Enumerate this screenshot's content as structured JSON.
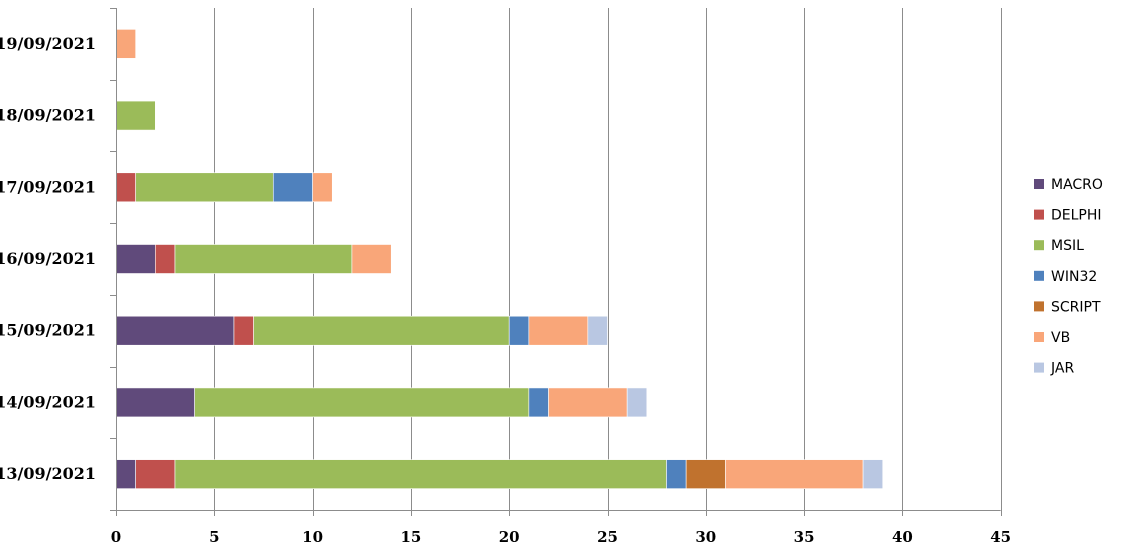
{
  "chart_data": {
    "type": "bar",
    "orientation": "horizontal",
    "stacked": true,
    "categories": [
      "13/09/2021",
      "14/09/2021",
      "15/09/2021",
      "16/09/2021",
      "17/09/2021",
      "18/09/2021",
      "19/09/2021"
    ],
    "series": [
      {
        "name": "MACRO",
        "color": "#604a7b",
        "values": [
          1,
          4,
          6,
          2,
          0,
          0,
          0
        ]
      },
      {
        "name": "DELPHI",
        "color": "#c0504d",
        "values": [
          2,
          0,
          1,
          1,
          1,
          0,
          0
        ]
      },
      {
        "name": "MSIL",
        "color": "#9bbb59",
        "values": [
          25,
          17,
          13,
          9,
          7,
          2,
          0
        ]
      },
      {
        "name": "WIN32",
        "color": "#4f81bd",
        "values": [
          1,
          1,
          1,
          0,
          2,
          0,
          0
        ]
      },
      {
        "name": "SCRIPT",
        "color": "#c0722e",
        "values": [
          2,
          0,
          0,
          0,
          0,
          0,
          0
        ]
      },
      {
        "name": "VB",
        "color": "#f9a679",
        "values": [
          7,
          4,
          3,
          2,
          1,
          0,
          1
        ]
      },
      {
        "name": "JAR",
        "color": "#b9c7e2",
        "values": [
          1,
          1,
          1,
          0,
          0,
          0,
          0
        ]
      }
    ],
    "x_ticks": [
      0,
      5,
      10,
      15,
      20,
      25,
      30,
      35,
      40,
      45
    ],
    "xlim": [
      0,
      45
    ],
    "grid": true,
    "legend_position": "right"
  }
}
